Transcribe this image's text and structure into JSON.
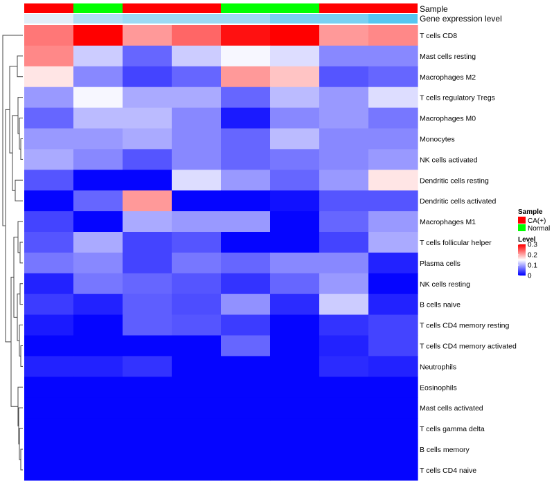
{
  "chart_data": {
    "type": "heatmap",
    "color_scale": {
      "min": 0,
      "mid": 0.15,
      "max": 0.3,
      "low_color": "#0000ff",
      "mid_color": "#ffffff",
      "high_color": "#ff0000"
    },
    "annotation_tracks": [
      {
        "name": "Sample",
        "values": [
          "CA(+)",
          "Normal",
          "CA(+)",
          "CA(+)",
          "Normal",
          "Normal",
          "CA(+)",
          "CA(+)"
        ]
      },
      {
        "name": "Gene expression level",
        "values": [
          0,
          0.15,
          0.2,
          0.2,
          0.2,
          0.3,
          0.3,
          0.4
        ]
      }
    ],
    "rows": [
      "T cells CD8",
      "Mast cells resting",
      "Macrophages M2",
      "T cells regulatory  Tregs",
      "Macrophages M0",
      "Monocytes",
      "NK cells activated",
      "Dendritic cells resting",
      "Dendritic cells activated",
      "Macrophages M1",
      "T cells follicular helper",
      "Plasma cells",
      "NK cells resting",
      "B cells naive",
      "T cells CD4 memory resting",
      "T cells CD4 memory activated",
      "Neutrophils",
      "Eosinophils",
      "Mast cells activated",
      "T cells gamma delta",
      "B cells memory",
      "T cells CD4 naive"
    ],
    "columns": 8,
    "values": [
      [
        0.23,
        0.3,
        0.21,
        0.24,
        0.29,
        0.3,
        0.21,
        0.22
      ],
      [
        0.22,
        0.12,
        0.06,
        0.12,
        0.145,
        0.13,
        0.08,
        0.08
      ],
      [
        0.165,
        0.08,
        0.04,
        0.06,
        0.21,
        0.185,
        0.05,
        0.06
      ],
      [
        0.09,
        0.145,
        0.1,
        0.1,
        0.06,
        0.11,
        0.09,
        0.13
      ],
      [
        0.06,
        0.11,
        0.11,
        0.08,
        0.015,
        0.08,
        0.09,
        0.07
      ],
      [
        0.09,
        0.09,
        0.1,
        0.08,
        0.06,
        0.11,
        0.08,
        0.08
      ],
      [
        0.1,
        0.08,
        0.05,
        0.08,
        0.06,
        0.07,
        0.08,
        0.09
      ],
      [
        0.05,
        0.003,
        0.003,
        0.13,
        0.09,
        0.06,
        0.09,
        0.165
      ],
      [
        0.003,
        0.06,
        0.21,
        0.003,
        0.003,
        0.01,
        0.05,
        0.05
      ],
      [
        0.04,
        0.003,
        0.1,
        0.09,
        0.09,
        0.003,
        0.06,
        0.09
      ],
      [
        0.05,
        0.1,
        0.04,
        0.05,
        0.003,
        0.003,
        0.04,
        0.1
      ],
      [
        0.07,
        0.08,
        0.04,
        0.07,
        0.06,
        0.08,
        0.08,
        0.02
      ],
      [
        0.02,
        0.07,
        0.06,
        0.05,
        0.03,
        0.06,
        0.09,
        0.003
      ],
      [
        0.035,
        0.02,
        0.055,
        0.045,
        0.085,
        0.025,
        0.12,
        0.02
      ],
      [
        0.015,
        0.003,
        0.055,
        0.05,
        0.035,
        0.003,
        0.03,
        0.04
      ],
      [
        0.003,
        0.003,
        0.003,
        0.003,
        0.06,
        0.003,
        0.02,
        0.04
      ],
      [
        0.02,
        0.02,
        0.03,
        0.003,
        0.003,
        0.003,
        0.025,
        0.02
      ],
      [
        0.003,
        0.003,
        0.003,
        0.003,
        0.003,
        0.003,
        0.003,
        0.003
      ],
      [
        0.003,
        0.003,
        0.003,
        0.003,
        0.003,
        0.003,
        0.003,
        0.003
      ],
      [
        0.003,
        0.003,
        0.003,
        0.003,
        0.003,
        0.003,
        0.003,
        0.003
      ],
      [
        0.003,
        0.003,
        0.003,
        0.003,
        0.003,
        0.003,
        0.003,
        0.003
      ],
      [
        0.003,
        0.003,
        0.003,
        0.003,
        0.003,
        0.003,
        0.003,
        0.003
      ]
    ],
    "legend": {
      "sample_title": "Sample",
      "sample_entries": [
        {
          "label": "CA(+)",
          "color": "#ff0000"
        },
        {
          "label": "Normal",
          "color": "#00ff00"
        }
      ],
      "level_title": "Level",
      "level_ticks": [
        {
          "label": "0.3",
          "value": 0.3
        },
        {
          "label": "0.2",
          "value": 0.2
        },
        {
          "label": "0.1",
          "value": 0.1
        },
        {
          "label": "0",
          "value": 0
        }
      ],
      "gene_level_colors": {
        "low": "#e3eef8",
        "high": "#56c6f0"
      }
    }
  }
}
